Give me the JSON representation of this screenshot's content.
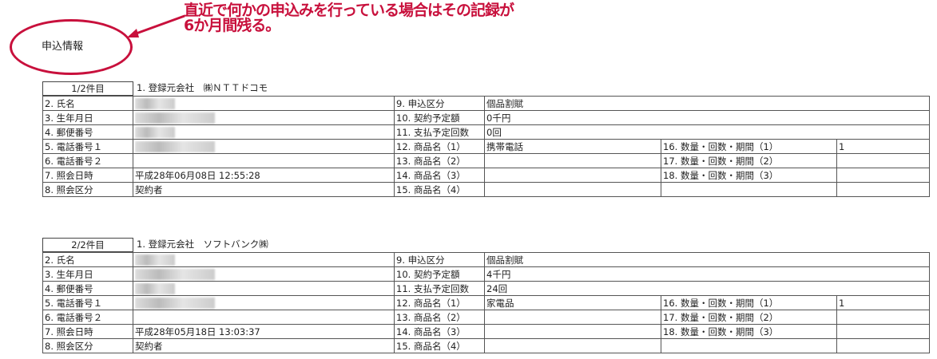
{
  "annotation": {
    "text_line1": "直近で何かの申込みを行っている場合はその記録が",
    "text_line2": "6か月間残る。",
    "color": "#c8103c"
  },
  "section_title": "申込情報",
  "labels": {
    "name": "2. 氏名",
    "birth": "3. 生年月日",
    "zip": "4. 郵便番号",
    "tel1": "5. 電話番号１",
    "tel2": "6. 電話番号２",
    "inquiry_datetime": "7. 照会日時",
    "inquiry_type": "8. 照会区分",
    "app_type": "9. 申込区分",
    "contract_amount": "10. 契約予定額",
    "payments": "11. 支払予定回数",
    "product1": "12. 商品名（1）",
    "product2": "13. 商品名（2）",
    "product3": "14. 商品名（3）",
    "product4": "15. 商品名（4）",
    "qty1": "16. 数量・回数・期間（1）",
    "qty2": "17. 数量・回数・期間（2）",
    "qty3": "18. 数量・回数・期間（3）"
  },
  "records": [
    {
      "count": "1/2件目",
      "company": "1. 登録元会社　㈱ＮＴＴドコモ",
      "inquiry_datetime": "平成28年06月08日 12:55:28",
      "inquiry_type": "契約者",
      "app_type": "個品割賦",
      "contract_amount": "0千円",
      "payments": "0回",
      "product1": "携帯電話",
      "qty1": "1"
    },
    {
      "count": "2/2件目",
      "company": "1. 登録元会社　ソフトバンク㈱",
      "inquiry_datetime": "平成28年05月18日 13:03:37",
      "inquiry_type": "契約者",
      "app_type": "個品割賦",
      "contract_amount": "4千円",
      "payments": "24回",
      "product1": "家電品",
      "qty1": "1"
    }
  ]
}
